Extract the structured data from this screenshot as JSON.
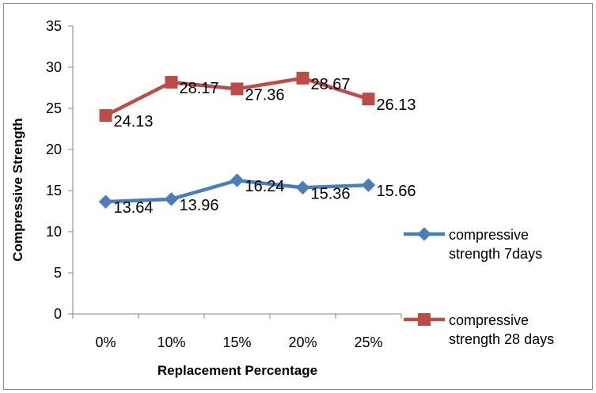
{
  "chart_data": {
    "type": "line",
    "title": "",
    "xlabel": "Replacement Percentage",
    "ylabel": "Compressive Strength",
    "categories": [
      "0%",
      "10%",
      "15%",
      "20%",
      "25%"
    ],
    "ylim": [
      0,
      35
    ],
    "yticks": [
      0,
      5,
      10,
      15,
      20,
      25,
      30,
      35
    ],
    "grid": false,
    "legend_position": "right",
    "series": [
      {
        "name": "compressive strength 7days",
        "name_lines": [
          "compressive",
          "strength 7days"
        ],
        "values": [
          13.64,
          13.96,
          16.24,
          15.36,
          15.66
        ],
        "labels": [
          "13.64",
          "13.96",
          "16.24",
          "15.36",
          "15.66"
        ],
        "color": "#4a7ebb",
        "marker": "diamond"
      },
      {
        "name": "compressive strength 28 days",
        "name_lines": [
          "compressive",
          "strength 28 days"
        ],
        "values": [
          24.13,
          28.17,
          27.36,
          28.67,
          26.13
        ],
        "labels": [
          "24.13",
          "28.17",
          "27.36",
          "28.67",
          "26.13"
        ],
        "color": "#be4b48",
        "marker": "square"
      }
    ]
  }
}
